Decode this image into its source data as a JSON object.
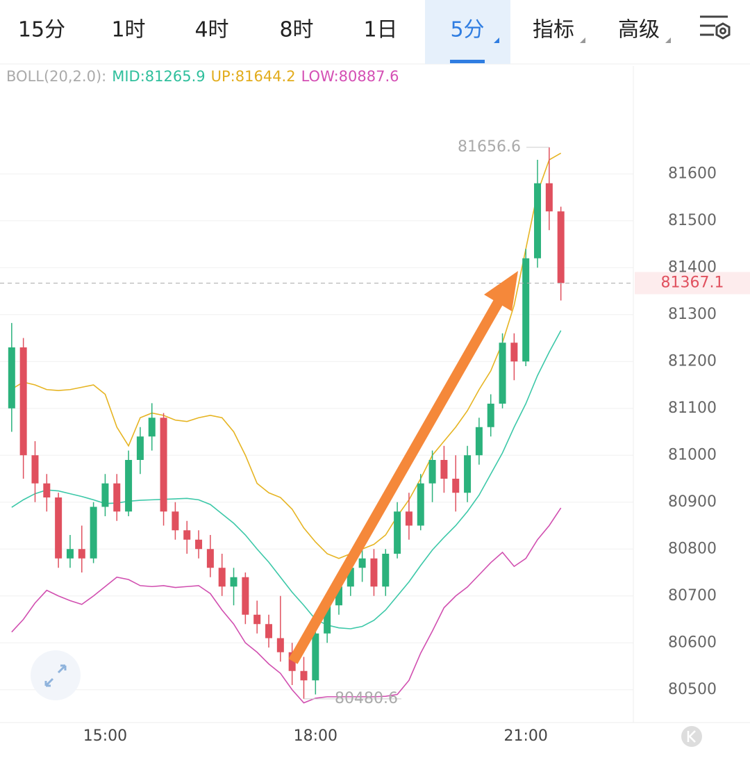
{
  "toolbar": {
    "tabs": [
      "15分",
      "1时",
      "4时",
      "8时",
      "1日",
      "5分",
      "指标",
      "高级"
    ],
    "active": 5
  },
  "indicator": {
    "label": "BOLL(20,2.0):",
    "items": [
      {
        "text": "MID:81265.9",
        "color": "#2fbf9c"
      },
      {
        "text": "UP:81644.2",
        "color": "#e2ac1c"
      },
      {
        "text": "LOW:80887.6",
        "color": "#d44fb4"
      }
    ]
  },
  "chart_data": {
    "type": "candlestick",
    "x": [
      820,
      830,
      840,
      850,
      860,
      870,
      880,
      890,
      900,
      910,
      920,
      930,
      940,
      950,
      960,
      970,
      980,
      990,
      1000,
      1010,
      1020,
      1030,
      1040,
      1050,
      1060,
      1070,
      1080,
      1090,
      1100,
      1110,
      1120,
      1130,
      1140,
      1150,
      1160,
      1170,
      1180,
      1190,
      1200,
      1210,
      1220,
      1230,
      1240,
      1250,
      1260,
      1270,
      1280,
      1290
    ],
    "open": [
      81100,
      81230,
      81000,
      80940,
      80910,
      80780,
      80800,
      80780,
      80890,
      80940,
      80880,
      80990,
      81040,
      81080,
      80880,
      80840,
      80820,
      80800,
      80760,
      80720,
      80740,
      80660,
      80640,
      80610,
      80580,
      80540,
      80520,
      80620,
      80680,
      80720,
      80760,
      80780,
      80720,
      80790,
      80880,
      80850,
      80940,
      80990,
      80950,
      80920,
      81000,
      81060,
      81110,
      81240,
      81200,
      81420,
      81580,
      81520
    ],
    "high": [
      81282,
      81250,
      81030,
      80960,
      80920,
      80830,
      80850,
      80900,
      80960,
      80960,
      81010,
      81060,
      81111,
      81090,
      80900,
      80860,
      80840,
      80830,
      80790,
      80760,
      80750,
      80690,
      80660,
      80700,
      80600,
      80570,
      80640,
      80700,
      80740,
      80780,
      80800,
      80800,
      80800,
      80900,
      80920,
      80960,
      81010,
      81020,
      81000,
      81020,
      81080,
      81130,
      81260,
      81260,
      81440,
      81630,
      81656.6,
      81530
    ],
    "low": [
      81050,
      80950,
      80900,
      80880,
      80760,
      80760,
      80750,
      80770,
      80870,
      80860,
      80870,
      80960,
      81010,
      80850,
      80820,
      80790,
      80780,
      80740,
      80700,
      80680,
      80640,
      80620,
      80590,
      80560,
      80510,
      80480.6,
      80490,
      80600,
      80660,
      80700,
      80730,
      80700,
      80700,
      80780,
      80820,
      80840,
      80900,
      80920,
      80880,
      80900,
      80980,
      81040,
      81100,
      81160,
      81190,
      81400,
      81480,
      81330
    ],
    "close": [
      81230,
      81000,
      80940,
      80910,
      80780,
      80800,
      80780,
      80890,
      80940,
      80880,
      80990,
      81040,
      81080,
      80880,
      80840,
      80820,
      80800,
      80760,
      80720,
      80740,
      80660,
      80640,
      80610,
      80580,
      80540,
      80520,
      80620,
      80680,
      80720,
      80760,
      80780,
      80720,
      80790,
      80880,
      80850,
      80940,
      80990,
      80950,
      80920,
      81000,
      81060,
      81110,
      81240,
      81200,
      81420,
      81580,
      81520,
      81367.1
    ],
    "up_color": "#2bb27c",
    "down_color": "#e0505e",
    "series": [
      {
        "color": "#3cc8a8",
        "values": [
          80889,
          80905,
          80918,
          80926,
          80924,
          80918,
          80912,
          80905,
          80897,
          80898,
          80902,
          80904,
          80905,
          80906,
          80907,
          80908,
          80905,
          80895,
          80875,
          80855,
          80830,
          80800,
          80772,
          80740,
          80708,
          80680,
          80650,
          80638,
          80632,
          80630,
          80635,
          80648,
          80670,
          80700,
          80730,
          80765,
          80798,
          80825,
          80850,
          80880,
          80915,
          80960,
          81005,
          81060,
          81110,
          81170,
          81220,
          81265.9
        ]
      },
      {
        "color": "#e6b422",
        "values": [
          81141,
          81156,
          81150,
          81140,
          81138,
          81140,
          81145,
          81150,
          81130,
          81060,
          81020,
          81080,
          81090,
          81085,
          81075,
          81072,
          81080,
          81085,
          81080,
          81050,
          81000,
          80940,
          80920,
          80910,
          80885,
          80845,
          80815,
          80790,
          80780,
          80790,
          80800,
          80810,
          80830,
          80870,
          80905,
          80950,
          81000,
          81030,
          81060,
          81095,
          81140,
          81180,
          81240,
          81320,
          81440,
          81560,
          81630,
          81644.2
        ]
      },
      {
        "color": "#d14fb0",
        "values": [
          80623,
          80650,
          80685,
          80712,
          80700,
          80690,
          80682,
          80700,
          80720,
          80740,
          80735,
          80722,
          80720,
          80722,
          80718,
          80720,
          80722,
          80705,
          80670,
          80640,
          80600,
          80580,
          80555,
          80535,
          80500,
          80472,
          80482,
          80485,
          80485,
          80485,
          80485,
          80485,
          80486,
          80490,
          80520,
          80578,
          80625,
          80675,
          80700,
          80719,
          80745,
          80771,
          80793,
          80763,
          80780,
          80820,
          80850,
          80887.6
        ]
      }
    ],
    "xlim": [
      810,
      1352
    ],
    "ylim": [
      80430,
      81830
    ],
    "xticks": [
      {
        "value": 900,
        "label": "15:00"
      },
      {
        "value": 1080,
        "label": "18:00"
      },
      {
        "value": 1260,
        "label": "21:00"
      }
    ],
    "yticks": [
      80500,
      80600,
      80700,
      80800,
      80900,
      81000,
      81100,
      81200,
      81300,
      81400,
      81500,
      81600
    ],
    "grid": true,
    "max_label": 81656.6,
    "min_label": 80480.6,
    "last_price": 81367.1
  }
}
